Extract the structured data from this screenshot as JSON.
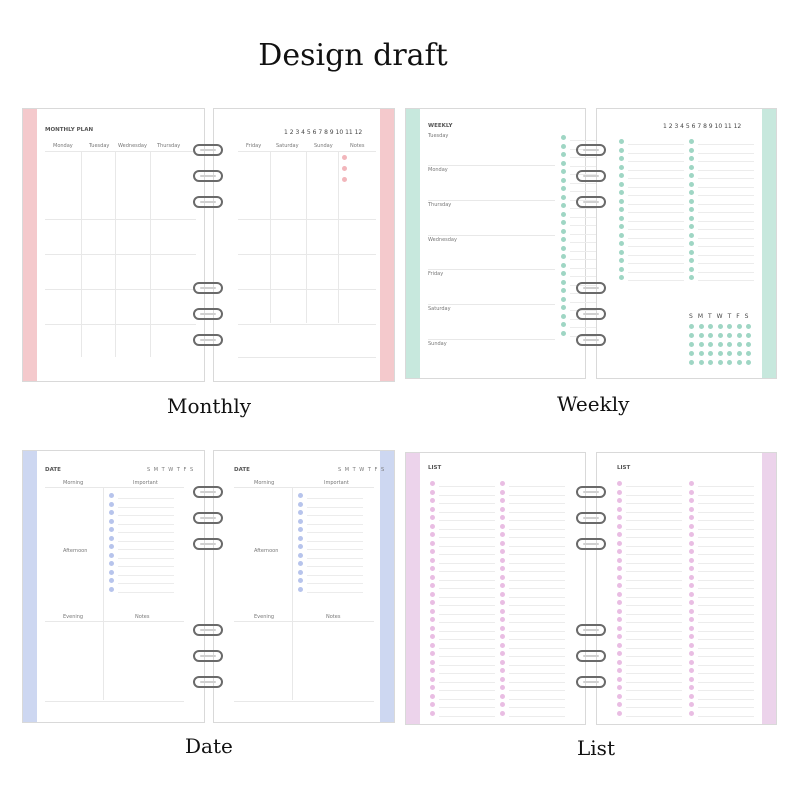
{
  "header": {
    "title": "Design draft"
  },
  "captions": {
    "monthly": "Monthly",
    "weekly": "Weekly",
    "date": "Date",
    "list": "List"
  },
  "colors": {
    "monthly": "#f4c9cc",
    "weekly": "#c7e8dd",
    "date": "#cdd7f1",
    "list": "#ecd3eb"
  },
  "monthly": {
    "left_title": "MONTHLY PLAN",
    "left_columns": [
      "Monday",
      "Tuesday",
      "Wednesday",
      "Thursday"
    ],
    "right_columns": [
      "Friday",
      "Saturday",
      "Sunday",
      "Notes"
    ],
    "month_numbers": "1 2 3 4 5 6 7 8 9 10 11 12"
  },
  "weekly": {
    "title": "WEEKLY",
    "days": [
      "Tuesday",
      "Monday",
      "Thursday",
      "Wednesday",
      "Friday",
      "Saturday",
      "Sunday"
    ],
    "month_numbers": "1 2 3 4 5 6 7 8 9 10 11 12",
    "habit_days": [
      "S",
      "M",
      "T",
      "W",
      "T",
      "F",
      "S"
    ]
  },
  "date": {
    "title": "DATE",
    "weekdays": "S M T W T F S",
    "morning": "Morning",
    "important": "Important",
    "afternoon": "Afternoon",
    "evening": "Evening",
    "notes": "Notes"
  },
  "list": {
    "title": "LIST"
  }
}
